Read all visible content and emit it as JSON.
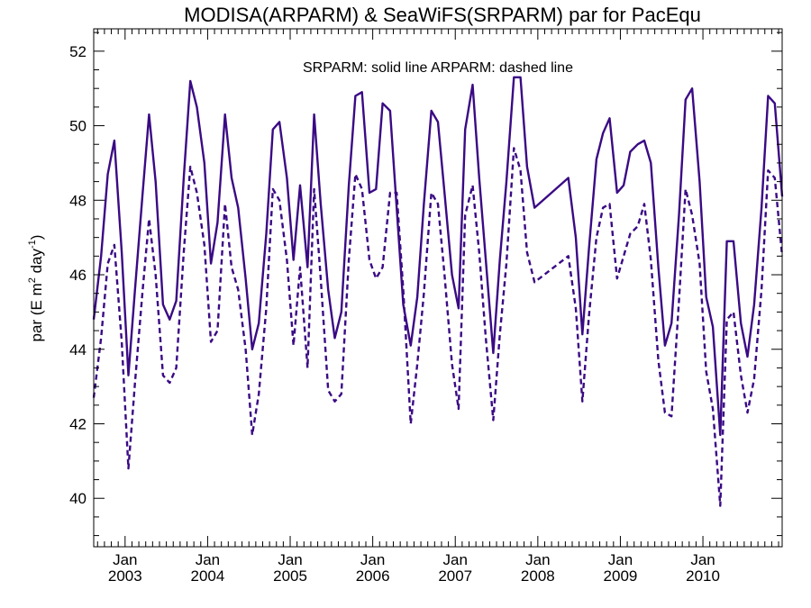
{
  "chart_data": {
    "type": "line",
    "title": "MODISA(ARPARM) & SeaWiFS(SRPARM)  par for PacEqu",
    "annotation": "SRPARM: solid line   ARPARM: dashed line",
    "ylabel_parts": {
      "a": "par (E m",
      "b": "2",
      "c": " day",
      "d": "-1",
      "e": ")"
    },
    "xlabel": "",
    "ylim": [
      38.7,
      52.6
    ],
    "xlim": [
      2002.62,
      2010.96
    ],
    "y_ticks": [
      40,
      42,
      44,
      46,
      48,
      50,
      52
    ],
    "y_tick_labels": [
      "40",
      "42",
      "44",
      "46",
      "48",
      "50",
      "52"
    ],
    "x_major_ticks": [
      2003.0,
      2004.0,
      2005.0,
      2006.0,
      2007.0,
      2008.0,
      2009.0,
      2010.0
    ],
    "x_tick_labels_top": [
      "Jan",
      "Jan",
      "Jan",
      "Jan",
      "Jan",
      "Jan",
      "Jan",
      "Jan"
    ],
    "x_tick_labels_bottom": [
      "2003",
      "2004",
      "2005",
      "2006",
      "2007",
      "2008",
      "2009",
      "2010"
    ],
    "line_color": "#3a0a84",
    "grid": false,
    "series": [
      {
        "name": "SRPARM",
        "style": "solid",
        "points": [
          [
            2002.62,
            44.8
          ],
          [
            2002.71,
            46.5
          ],
          [
            2002.79,
            48.7
          ],
          [
            2002.87,
            49.6
          ],
          [
            2002.96,
            46.6
          ],
          [
            2003.04,
            43.3
          ],
          [
            2003.12,
            45.6
          ],
          [
            2003.21,
            48.1
          ],
          [
            2003.29,
            50.3
          ],
          [
            2003.37,
            48.5
          ],
          [
            2003.46,
            45.2
          ],
          [
            2003.54,
            44.8
          ],
          [
            2003.62,
            45.3
          ],
          [
            2003.71,
            48.6
          ],
          [
            2003.79,
            51.2
          ],
          [
            2003.87,
            50.5
          ],
          [
            2003.96,
            49.0
          ],
          [
            2004.04,
            46.3
          ],
          [
            2004.12,
            47.4
          ],
          [
            2004.21,
            50.3
          ],
          [
            2004.29,
            48.6
          ],
          [
            2004.37,
            47.8
          ],
          [
            2004.46,
            45.9
          ],
          [
            2004.54,
            44.0
          ],
          [
            2004.62,
            44.7
          ],
          [
            2004.71,
            47.1
          ],
          [
            2004.79,
            49.9
          ],
          [
            2004.87,
            50.1
          ],
          [
            2004.96,
            48.6
          ],
          [
            2005.04,
            46.4
          ],
          [
            2005.12,
            48.4
          ],
          [
            2005.21,
            46.2
          ],
          [
            2005.29,
            50.3
          ],
          [
            2005.37,
            47.9
          ],
          [
            2005.46,
            45.6
          ],
          [
            2005.54,
            44.3
          ],
          [
            2005.62,
            45.0
          ],
          [
            2005.71,
            48.4
          ],
          [
            2005.79,
            50.8
          ],
          [
            2005.87,
            50.9
          ],
          [
            2005.96,
            48.2
          ],
          [
            2006.04,
            48.3
          ],
          [
            2006.12,
            50.6
          ],
          [
            2006.21,
            50.4
          ],
          [
            2006.29,
            47.8
          ],
          [
            2006.37,
            45.2
          ],
          [
            2006.46,
            44.1
          ],
          [
            2006.54,
            45.4
          ],
          [
            2006.62,
            47.9
          ],
          [
            2006.71,
            50.4
          ],
          [
            2006.79,
            50.1
          ],
          [
            2006.87,
            48.2
          ],
          [
            2006.96,
            46.0
          ],
          [
            2007.04,
            45.1
          ],
          [
            2007.12,
            49.9
          ],
          [
            2007.21,
            51.1
          ],
          [
            2007.29,
            48.6
          ],
          [
            2007.37,
            46.4
          ],
          [
            2007.46,
            43.9
          ],
          [
            2007.54,
            46.4
          ],
          [
            2007.62,
            48.5
          ],
          [
            2007.71,
            51.3
          ],
          [
            2007.79,
            51.3
          ],
          [
            2007.87,
            48.9
          ],
          [
            2007.96,
            47.8
          ],
          [
            2008.37,
            48.6
          ],
          [
            2008.46,
            47.0
          ],
          [
            2008.54,
            44.4
          ],
          [
            2008.62,
            46.7
          ],
          [
            2008.71,
            49.1
          ],
          [
            2008.79,
            49.8
          ],
          [
            2008.87,
            50.2
          ],
          [
            2008.96,
            48.2
          ],
          [
            2009.04,
            48.4
          ],
          [
            2009.12,
            49.3
          ],
          [
            2009.21,
            49.5
          ],
          [
            2009.29,
            49.6
          ],
          [
            2009.37,
            49.0
          ],
          [
            2009.46,
            46.2
          ],
          [
            2009.54,
            44.1
          ],
          [
            2009.62,
            44.7
          ],
          [
            2009.71,
            47.6
          ],
          [
            2009.79,
            50.7
          ],
          [
            2009.87,
            51.0
          ],
          [
            2009.96,
            48.5
          ],
          [
            2010.04,
            45.4
          ],
          [
            2010.12,
            44.6
          ],
          [
            2010.21,
            41.7
          ],
          [
            2010.29,
            46.9
          ],
          [
            2010.37,
            46.9
          ],
          [
            2010.46,
            44.7
          ],
          [
            2010.54,
            43.8
          ],
          [
            2010.62,
            45.2
          ],
          [
            2010.71,
            47.8
          ],
          [
            2010.79,
            50.8
          ],
          [
            2010.87,
            50.6
          ],
          [
            2010.96,
            48.1
          ]
        ]
      },
      {
        "name": "ARPARM",
        "style": "dashed",
        "points": [
          [
            2002.62,
            42.7
          ],
          [
            2002.71,
            44.3
          ],
          [
            2002.79,
            46.3
          ],
          [
            2002.87,
            46.8
          ],
          [
            2002.96,
            44.2
          ],
          [
            2003.04,
            40.8
          ],
          [
            2003.12,
            43.1
          ],
          [
            2003.21,
            45.5
          ],
          [
            2003.29,
            47.5
          ],
          [
            2003.37,
            46.0
          ],
          [
            2003.46,
            43.3
          ],
          [
            2003.54,
            43.1
          ],
          [
            2003.62,
            43.5
          ],
          [
            2003.71,
            46.6
          ],
          [
            2003.79,
            48.9
          ],
          [
            2003.87,
            48.2
          ],
          [
            2003.96,
            46.8
          ],
          [
            2004.04,
            44.2
          ],
          [
            2004.12,
            44.5
          ],
          [
            2004.21,
            47.9
          ],
          [
            2004.29,
            46.2
          ],
          [
            2004.37,
            45.6
          ],
          [
            2004.46,
            44.0
          ],
          [
            2004.54,
            41.7
          ],
          [
            2004.62,
            42.8
          ],
          [
            2004.71,
            45.1
          ],
          [
            2004.79,
            48.3
          ],
          [
            2004.87,
            48.0
          ],
          [
            2004.96,
            46.4
          ],
          [
            2005.04,
            44.1
          ],
          [
            2005.12,
            46.2
          ],
          [
            2005.21,
            43.5
          ],
          [
            2005.29,
            48.3
          ],
          [
            2005.37,
            45.9
          ],
          [
            2005.46,
            42.9
          ],
          [
            2005.54,
            42.6
          ],
          [
            2005.62,
            42.8
          ],
          [
            2005.71,
            46.4
          ],
          [
            2005.79,
            48.7
          ],
          [
            2005.87,
            48.3
          ],
          [
            2005.96,
            46.4
          ],
          [
            2006.04,
            45.9
          ],
          [
            2006.12,
            46.2
          ],
          [
            2006.21,
            48.2
          ],
          [
            2006.29,
            48.2
          ],
          [
            2006.37,
            45.6
          ],
          [
            2006.46,
            42.0
          ],
          [
            2006.54,
            43.6
          ],
          [
            2006.62,
            45.5
          ],
          [
            2006.71,
            48.2
          ],
          [
            2006.79,
            47.9
          ],
          [
            2006.87,
            46.0
          ],
          [
            2006.96,
            43.6
          ],
          [
            2007.04,
            42.4
          ],
          [
            2007.12,
            47.6
          ],
          [
            2007.21,
            48.4
          ],
          [
            2007.29,
            46.6
          ],
          [
            2007.37,
            44.3
          ],
          [
            2007.46,
            42.1
          ],
          [
            2007.54,
            44.4
          ],
          [
            2007.62,
            46.3
          ],
          [
            2007.71,
            49.4
          ],
          [
            2007.79,
            48.8
          ],
          [
            2007.87,
            46.6
          ],
          [
            2007.96,
            45.8
          ],
          [
            2008.37,
            46.5
          ],
          [
            2008.46,
            45.1
          ],
          [
            2008.54,
            42.6
          ],
          [
            2008.62,
            44.9
          ],
          [
            2008.71,
            47.0
          ],
          [
            2008.79,
            47.8
          ],
          [
            2008.87,
            47.9
          ],
          [
            2008.96,
            45.9
          ],
          [
            2009.04,
            46.5
          ],
          [
            2009.12,
            47.1
          ],
          [
            2009.21,
            47.3
          ],
          [
            2009.29,
            47.9
          ],
          [
            2009.37,
            46.4
          ],
          [
            2009.46,
            43.7
          ],
          [
            2009.54,
            42.3
          ],
          [
            2009.62,
            42.2
          ],
          [
            2009.71,
            45.3
          ],
          [
            2009.79,
            48.3
          ],
          [
            2009.87,
            47.6
          ],
          [
            2009.96,
            46.3
          ],
          [
            2010.04,
            43.4
          ],
          [
            2010.12,
            42.4
          ],
          [
            2010.21,
            39.8
          ],
          [
            2010.29,
            44.8
          ],
          [
            2010.37,
            45.0
          ],
          [
            2010.46,
            43.3
          ],
          [
            2010.54,
            42.3
          ],
          [
            2010.62,
            43.2
          ],
          [
            2010.71,
            45.6
          ],
          [
            2010.79,
            48.8
          ],
          [
            2010.87,
            48.6
          ],
          [
            2010.96,
            46.5
          ]
        ]
      }
    ]
  }
}
